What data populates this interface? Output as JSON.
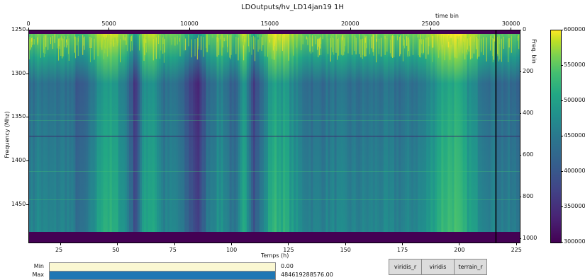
{
  "title": "LDOutputs/hv_LD14jan19 1H",
  "axes": {
    "bottom_title": "Temps (h)",
    "bottom_ticks": [
      "25",
      "50",
      "75",
      "100",
      "125",
      "150",
      "175",
      "200",
      "225"
    ],
    "top_title": "time bin",
    "top_ticks": [
      "0",
      "5000",
      "10000",
      "15000",
      "20000",
      "25000",
      "30000"
    ],
    "left_title": "Frequency (Mhz)",
    "left_ticks": [
      "1250",
      "1300",
      "1350",
      "1400",
      "1450"
    ],
    "right_title": "Freq. bin",
    "right_ticks": [
      "0",
      "200",
      "400",
      "600",
      "800",
      "1000"
    ]
  },
  "colorbar": {
    "ticks": [
      "600000",
      "550000",
      "500000",
      "450000",
      "400000",
      "350000",
      "300000"
    ],
    "colormap": "viridis",
    "range": [
      300000,
      600000
    ]
  },
  "sliders": {
    "min": {
      "label": "Min",
      "value": "0.00",
      "fill_fraction": 0.0,
      "color": "#faf7d2"
    },
    "max": {
      "label": "Max",
      "value": "484619288576.00",
      "fill_fraction": 1.0,
      "color": "#1f77b4"
    }
  },
  "colormap_buttons": [
    {
      "label": "viridis_r"
    },
    {
      "label": "viridis"
    },
    {
      "label": "terrain_r"
    }
  ],
  "chart_data": {
    "type": "heatmap",
    "title": "LDOutputs/hv_LD14jan19 1H",
    "xlabel": "Temps (h)",
    "ylabel": "Frequency (Mhz)",
    "x_range_hours": [
      11,
      227
    ],
    "y_range_mhz": [
      1250,
      1495
    ],
    "top_axis": {
      "label": "time bin",
      "range": [
        0,
        30600
      ]
    },
    "right_axis": {
      "label": "Freq. bin",
      "range": [
        0,
        1024
      ]
    },
    "colormap": "viridis",
    "value_range": [
      300000,
      600000
    ],
    "marker_line_hours": 216
  }
}
